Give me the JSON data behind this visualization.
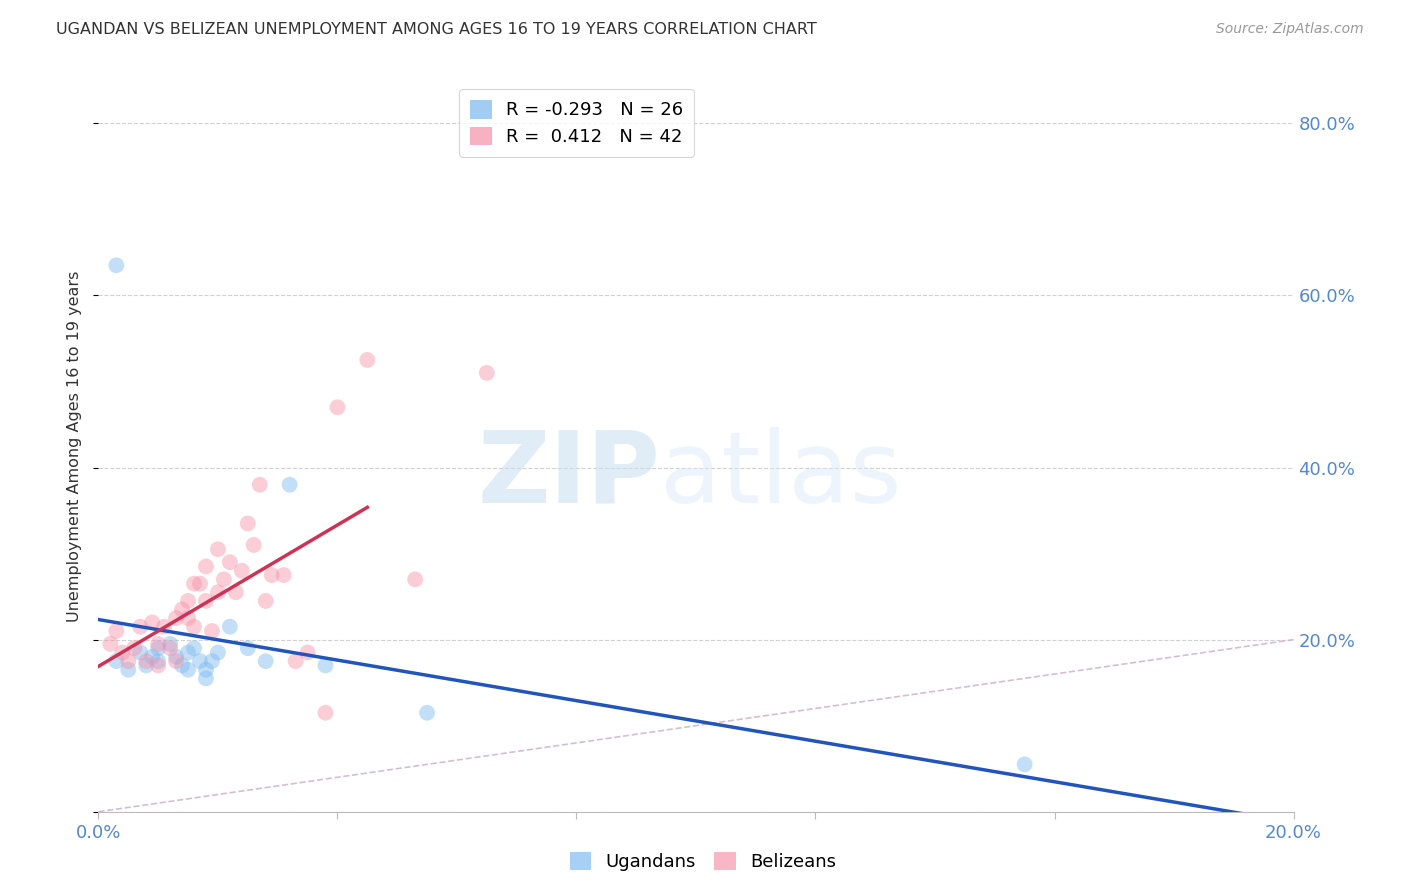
{
  "title": "UGANDAN VS BELIZEAN UNEMPLOYMENT AMONG AGES 16 TO 19 YEARS CORRELATION CHART",
  "source": "Source: ZipAtlas.com",
  "ylabel": "Unemployment Among Ages 16 to 19 years",
  "xlim": [
    0.0,
    0.2
  ],
  "ylim": [
    0.0,
    0.85
  ],
  "x_ticks": [
    0.0,
    0.04,
    0.08,
    0.12,
    0.16,
    0.2
  ],
  "x_tick_labels": [
    "0.0%",
    "",
    "",
    "",
    "",
    "20.0%"
  ],
  "y_ticks_right": [
    0.2,
    0.4,
    0.6,
    0.8
  ],
  "y_tick_labels_right": [
    "20.0%",
    "40.0%",
    "60.0%",
    "80.0%"
  ],
  "ugandan_color": "#7ab8f0",
  "belizean_color": "#f590a8",
  "ugandan_line_color": "#2255bb",
  "belizean_line_color": "#cc3355",
  "ref_line_color": "#d0b8c8",
  "R_ugandan": -0.293,
  "N_ugandan": 26,
  "R_belizean": 0.412,
  "N_belizean": 42,
  "ugandan_x": [
    0.003,
    0.005,
    0.007,
    0.008,
    0.009,
    0.01,
    0.01,
    0.012,
    0.013,
    0.014,
    0.015,
    0.015,
    0.016,
    0.017,
    0.018,
    0.018,
    0.019,
    0.02,
    0.022,
    0.025,
    0.028,
    0.032,
    0.038,
    0.055,
    0.155,
    0.003
  ],
  "ugandan_y": [
    0.175,
    0.165,
    0.185,
    0.17,
    0.18,
    0.19,
    0.175,
    0.195,
    0.18,
    0.17,
    0.185,
    0.165,
    0.19,
    0.175,
    0.165,
    0.155,
    0.175,
    0.185,
    0.215,
    0.19,
    0.175,
    0.38,
    0.17,
    0.115,
    0.055,
    0.635
  ],
  "belizean_x": [
    0.002,
    0.003,
    0.004,
    0.005,
    0.006,
    0.007,
    0.008,
    0.009,
    0.01,
    0.01,
    0.011,
    0.012,
    0.013,
    0.013,
    0.014,
    0.015,
    0.015,
    0.016,
    0.016,
    0.017,
    0.018,
    0.018,
    0.019,
    0.02,
    0.02,
    0.021,
    0.022,
    0.023,
    0.024,
    0.025,
    0.026,
    0.027,
    0.028,
    0.029,
    0.031,
    0.033,
    0.035,
    0.038,
    0.04,
    0.045,
    0.053,
    0.065
  ],
  "belizean_y": [
    0.195,
    0.21,
    0.185,
    0.175,
    0.19,
    0.215,
    0.175,
    0.22,
    0.195,
    0.17,
    0.215,
    0.19,
    0.175,
    0.225,
    0.235,
    0.245,
    0.225,
    0.265,
    0.215,
    0.265,
    0.245,
    0.285,
    0.21,
    0.305,
    0.255,
    0.27,
    0.29,
    0.255,
    0.28,
    0.335,
    0.31,
    0.38,
    0.245,
    0.275,
    0.275,
    0.175,
    0.185,
    0.115,
    0.47,
    0.525,
    0.27,
    0.51
  ],
  "ugandan_line_x": [
    0.0,
    0.2
  ],
  "ugandan_line_y": [
    0.225,
    0.0
  ],
  "belizean_line_x": [
    0.0,
    0.045
  ],
  "belizean_line_y": [
    0.2,
    0.36
  ],
  "ref_line_x": [
    0.0,
    0.85
  ],
  "ref_line_y": [
    0.0,
    0.85
  ],
  "watermark_zip": "ZIP",
  "watermark_atlas": "atlas",
  "marker_size": 130,
  "alpha": 0.45,
  "background_color": "#ffffff",
  "grid_color": "#cccccc"
}
